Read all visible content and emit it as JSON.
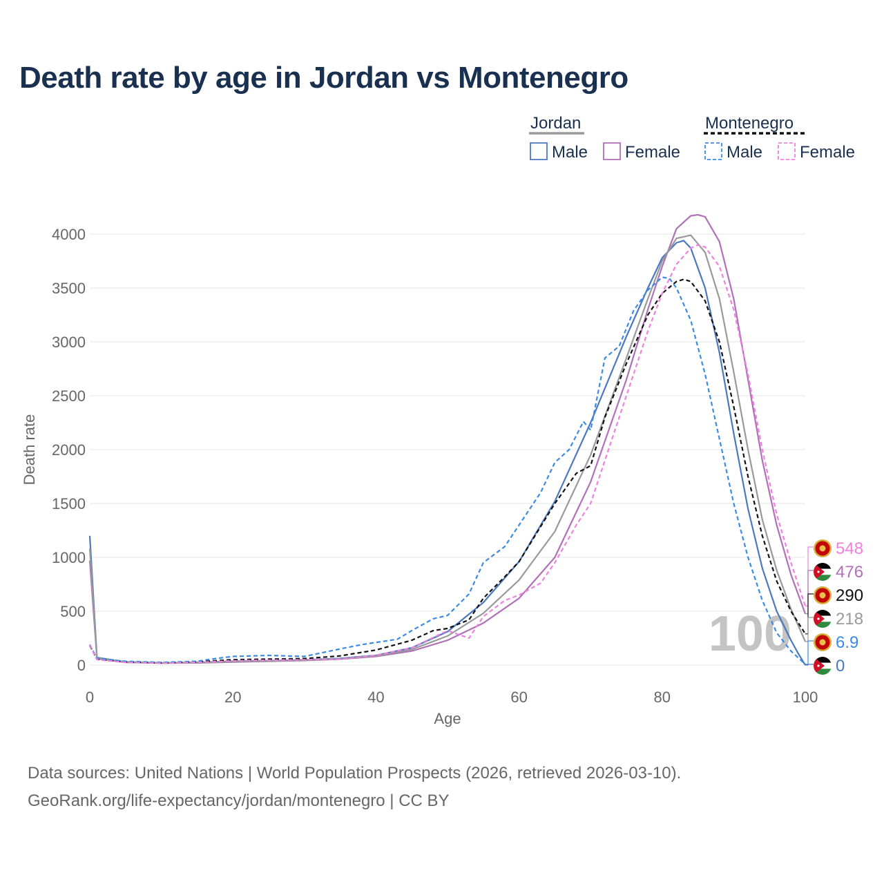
{
  "title": "Death rate by age in Jordan vs Montenegro",
  "legend": {
    "groups": [
      {
        "label": "Jordan",
        "line_color": "#999999",
        "line_dash": false,
        "items": [
          {
            "label": "Male",
            "color": "#4a78c0",
            "dashed": false
          },
          {
            "label": "Female",
            "color": "#b070b8",
            "dashed": false
          }
        ]
      },
      {
        "label": "Montenegro",
        "line_color": "#111111",
        "line_dash": true,
        "items": [
          {
            "label": "Male",
            "color": "#3a8ae8",
            "dashed": true
          },
          {
            "label": "Female",
            "color": "#f080e0",
            "dashed": true
          }
        ]
      }
    ]
  },
  "chart_data": {
    "type": "line",
    "title": "Death rate by age in Jordan vs Montenegro",
    "xlabel": "Age",
    "ylabel": "Death rate",
    "xlim": [
      0,
      100
    ],
    "ylim": [
      0,
      4000
    ],
    "xticks": [
      0,
      20,
      40,
      60,
      80,
      100
    ],
    "yticks": [
      0,
      500,
      1000,
      1500,
      2000,
      2500,
      3000,
      3500,
      4000
    ],
    "grid": true,
    "current_age_label": "100",
    "series": [
      {
        "name": "Jordan Male",
        "color": "#4a78c0",
        "dashed": false,
        "x": [
          0,
          1,
          5,
          10,
          15,
          20,
          25,
          30,
          35,
          40,
          45,
          50,
          55,
          60,
          65,
          70,
          75,
          78,
          80,
          82,
          83,
          84,
          86,
          88,
          90,
          92,
          94,
          96,
          98,
          99,
          100
        ],
        "y": [
          1200,
          70,
          30,
          20,
          25,
          35,
          40,
          48,
          62,
          90,
          160,
          310,
          580,
          960,
          1520,
          2250,
          3050,
          3500,
          3780,
          3920,
          3940,
          3870,
          3500,
          2900,
          2150,
          1450,
          900,
          500,
          230,
          110,
          0
        ]
      },
      {
        "name": "Jordan Female",
        "color": "#b070b8",
        "dashed": false,
        "x": [
          0,
          1,
          5,
          10,
          15,
          20,
          25,
          30,
          35,
          40,
          45,
          50,
          55,
          60,
          65,
          70,
          75,
          78,
          80,
          82,
          84,
          85,
          86,
          88,
          90,
          92,
          94,
          96,
          98,
          100
        ],
        "y": [
          970,
          60,
          25,
          18,
          20,
          28,
          35,
          42,
          55,
          80,
          130,
          230,
          390,
          620,
          1000,
          1700,
          2650,
          3300,
          3700,
          4050,
          4170,
          4180,
          4160,
          3930,
          3400,
          2650,
          1900,
          1300,
          840,
          476
        ]
      },
      {
        "name": "Jordan Total",
        "color": "#999999",
        "dashed": false,
        "x": [
          0,
          1,
          5,
          10,
          15,
          20,
          25,
          30,
          35,
          40,
          45,
          50,
          55,
          60,
          65,
          70,
          75,
          78,
          80,
          82,
          84,
          86,
          88,
          90,
          92,
          94,
          96,
          98,
          100
        ],
        "y": [
          1080,
          65,
          28,
          19,
          22,
          32,
          38,
          45,
          58,
          85,
          145,
          270,
          480,
          790,
          1240,
          1950,
          2850,
          3400,
          3750,
          3960,
          3990,
          3830,
          3400,
          2720,
          2000,
          1350,
          880,
          520,
          218
        ]
      },
      {
        "name": "Montenegro Total",
        "color": "#111111",
        "dashed": true,
        "x": [
          0,
          1,
          5,
          10,
          15,
          20,
          25,
          30,
          35,
          40,
          45,
          48,
          50,
          53,
          55,
          58,
          60,
          65,
          68,
          70,
          72,
          75,
          78,
          80,
          82,
          83,
          84,
          86,
          88,
          90,
          92,
          94,
          96,
          98,
          100
        ],
        "y": [
          180,
          55,
          30,
          20,
          30,
          50,
          55,
          60,
          85,
          140,
          230,
          320,
          340,
          420,
          620,
          820,
          960,
          1500,
          1780,
          1850,
          2300,
          2800,
          3250,
          3450,
          3560,
          3580,
          3560,
          3380,
          3000,
          2400,
          1750,
          1200,
          780,
          500,
          290
        ]
      },
      {
        "name": "Montenegro Male",
        "color": "#3a8ae8",
        "dashed": true,
        "x": [
          0,
          1,
          5,
          10,
          15,
          17,
          20,
          25,
          30,
          35,
          38,
          40,
          43,
          45,
          48,
          50,
          53,
          55,
          58,
          60,
          63,
          65,
          67,
          69,
          70,
          72,
          74,
          76,
          78,
          80,
          81,
          82,
          84,
          86,
          88,
          90,
          92,
          94,
          96,
          98,
          100
        ],
        "y": [
          190,
          60,
          35,
          25,
          35,
          55,
          80,
          90,
          80,
          150,
          190,
          210,
          240,
          320,
          430,
          460,
          660,
          950,
          1100,
          1300,
          1600,
          1880,
          2000,
          2260,
          2180,
          2850,
          2960,
          3290,
          3480,
          3600,
          3590,
          3500,
          3200,
          2700,
          2100,
          1500,
          1000,
          600,
          300,
          130,
          6.9
        ]
      },
      {
        "name": "Montenegro Female",
        "color": "#f080e0",
        "dashed": true,
        "x": [
          0,
          1,
          5,
          10,
          15,
          20,
          25,
          30,
          35,
          40,
          45,
          50,
          53,
          55,
          58,
          60,
          63,
          65,
          68,
          70,
          72,
          75,
          78,
          80,
          82,
          84,
          85,
          86,
          88,
          90,
          92,
          94,
          96,
          98,
          100
        ],
        "y": [
          185,
          50,
          25,
          18,
          25,
          40,
          45,
          50,
          55,
          90,
          160,
          320,
          250,
          450,
          600,
          650,
          760,
          950,
          1300,
          1500,
          1900,
          2500,
          3100,
          3450,
          3720,
          3870,
          3900,
          3880,
          3700,
          3300,
          2700,
          2000,
          1400,
          950,
          548
        ]
      }
    ],
    "end_labels": [
      {
        "value": "548",
        "series": "Montenegro Female",
        "color": "#f080e0",
        "flag": "montenegro"
      },
      {
        "value": "476",
        "series": "Jordan Female",
        "color": "#b070b8",
        "flag": "jordan"
      },
      {
        "value": "290",
        "series": "Montenegro Total",
        "color": "#111111",
        "flag": "montenegro"
      },
      {
        "value": "218",
        "series": "Jordan Total",
        "color": "#999999",
        "flag": "jordan"
      },
      {
        "value": "6.9",
        "series": "Montenegro Male",
        "color": "#3a8ae8",
        "flag": "montenegro"
      },
      {
        "value": "0",
        "series": "Jordan Male",
        "color": "#4a78c0",
        "flag": "jordan"
      }
    ]
  },
  "footer": {
    "line1": "Data sources: United Nations | World Population Prospects (2026, retrieved 2026-03-10).",
    "line2": "GeoRank.org/life-expectancy/jordan/montenegro | CC BY"
  }
}
